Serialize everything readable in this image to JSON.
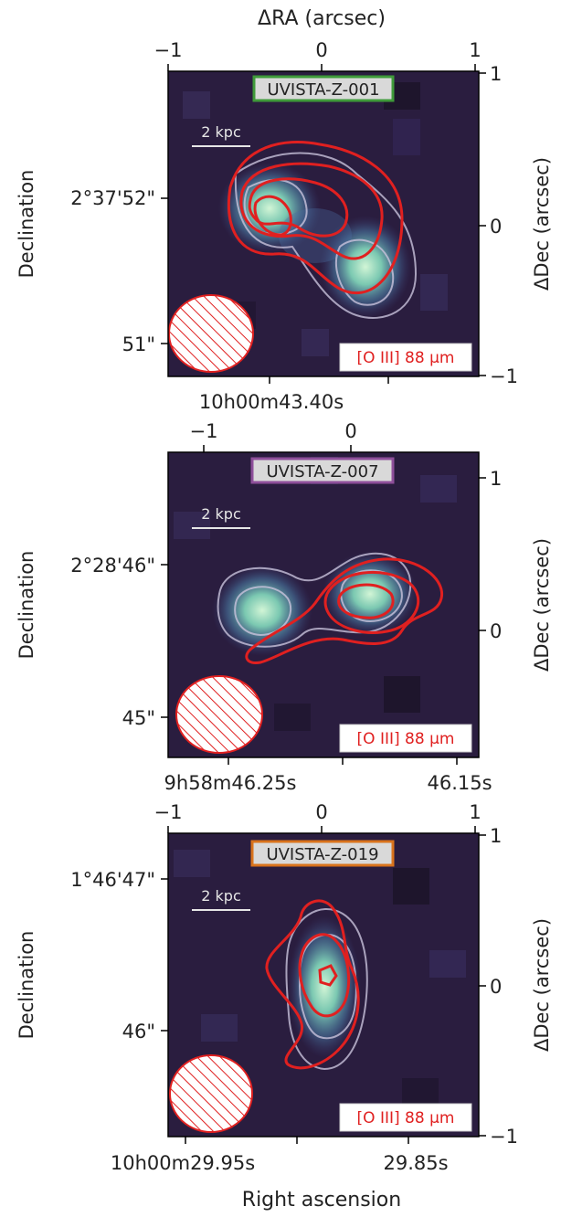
{
  "figure": {
    "xlabel_bottom": "Right ascension",
    "top_xlabel": "ΔRA (arcsec)"
  },
  "colors": {
    "oiii_contour": "#e02020",
    "continuum_contour": "#c9c3dc",
    "background": "#2a1d3f",
    "map_peak": "#c8f0cf",
    "scalebar": "#e6e6e6"
  },
  "panels": [
    {
      "label": "UVISTA-Z-001",
      "label_border": "#3f9a3a",
      "ylabel_left": "Declination",
      "ylabel_right": "ΔDec (arcsec)",
      "scalebar": "2 kpc",
      "line_label": "[O III] 88 μm",
      "left_ticks": [
        "2°37'52\"",
        "51\""
      ],
      "bottom_ticks": [
        "10h00m43.40s"
      ],
      "top_ticks": [
        "−1",
        "0",
        "1"
      ],
      "right_ticks": [
        "1",
        "0",
        "−1"
      ]
    },
    {
      "label": "UVISTA-Z-007",
      "label_border": "#8e4f9a",
      "ylabel_left": "Declination",
      "ylabel_right": "ΔDec (arcsec)",
      "scalebar": "2 kpc",
      "line_label": "[O III] 88 μm",
      "left_ticks": [
        "2°28'46\"",
        "45\""
      ],
      "bottom_ticks": [
        "9h58m46.25s",
        "46.15s"
      ],
      "top_ticks": [
        "−1",
        "0"
      ],
      "right_ticks": [
        "1",
        "0"
      ]
    },
    {
      "label": "UVISTA-Z-019",
      "label_border": "#d9731c",
      "ylabel_left": "Declination",
      "ylabel_right": "ΔDec (arcsec)",
      "scalebar": "2 kpc",
      "line_label": "[O III] 88 μm",
      "left_ticks": [
        "1°46'47\"",
        "46\""
      ],
      "bottom_ticks": [
        "10h00m29.95s",
        "29.85s"
      ],
      "top_ticks": [
        "−1",
        "0",
        "1"
      ],
      "right_ticks": [
        "1",
        "0",
        "−1"
      ]
    }
  ],
  "chart_data": [
    {
      "type": "heatmap",
      "source": "UVISTA-Z-001",
      "xlabel": "ΔRA (arcsec)",
      "ylabel": "ΔDec (arcsec)",
      "xlim": [
        -1,
        1
      ],
      "ylim": [
        -1,
        1
      ],
      "emission_peaks_arcsec": [
        [
          -0.3,
          0.15
        ],
        [
          0.32,
          -0.35
        ]
      ],
      "oiii_contour_levels": 3,
      "beam": "hatched ellipse, lower-left"
    },
    {
      "type": "heatmap",
      "source": "UVISTA-Z-007",
      "xlabel": "",
      "ylabel": "ΔDec (arcsec)",
      "xlim": [
        -1.6,
        1.1
      ],
      "ylim": [
        -1.0,
        1.2
      ],
      "emission_peaks_arcsec": [
        [
          -0.75,
          0.15
        ],
        [
          0.2,
          0.2
        ]
      ],
      "oiii_contour_levels": 3,
      "beam": "hatched ellipse, lower-left"
    },
    {
      "type": "heatmap",
      "source": "UVISTA-Z-019",
      "xlabel": "Right ascension",
      "ylabel": "ΔDec (arcsec)",
      "xlim": [
        -1,
        1
      ],
      "ylim": [
        -1,
        1
      ],
      "emission_peaks_arcsec": [
        [
          0.03,
          0.1
        ]
      ],
      "oiii_contour_levels": 3,
      "beam": "hatched ellipse, lower-left"
    }
  ]
}
